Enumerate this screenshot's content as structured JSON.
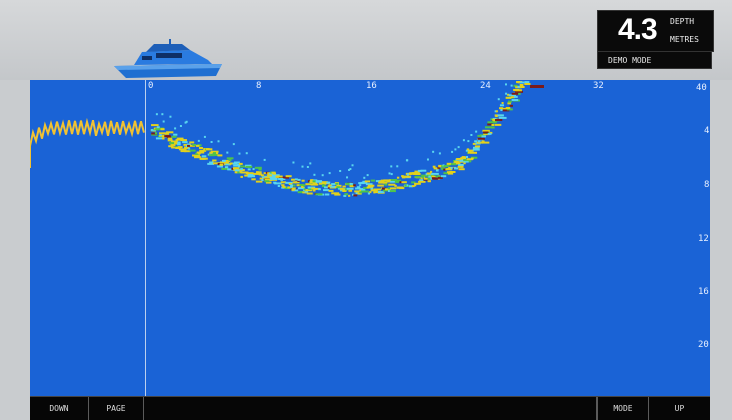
{
  "depth": {
    "value": "4.3",
    "label_top": "DEPTH",
    "label_bottom": "METRES"
  },
  "mode_text": "DEMO MODE",
  "scale_top": [
    "0",
    "8",
    "16",
    "24",
    "32",
    "40"
  ],
  "scale_right": [
    "0",
    "4",
    "8",
    "12",
    "16",
    "20"
  ],
  "softkeys": {
    "down": "DOWN",
    "page": "PAGE",
    "mode": "MODE",
    "up": "UP"
  },
  "colors": {
    "water": "#1a63d6",
    "trace": "#f1c232",
    "echo_strong": "#7a1b1b",
    "echo_mid": "#e3d11b",
    "echo_green": "#4ec34a",
    "echo_weak": "#58d6ef"
  }
}
